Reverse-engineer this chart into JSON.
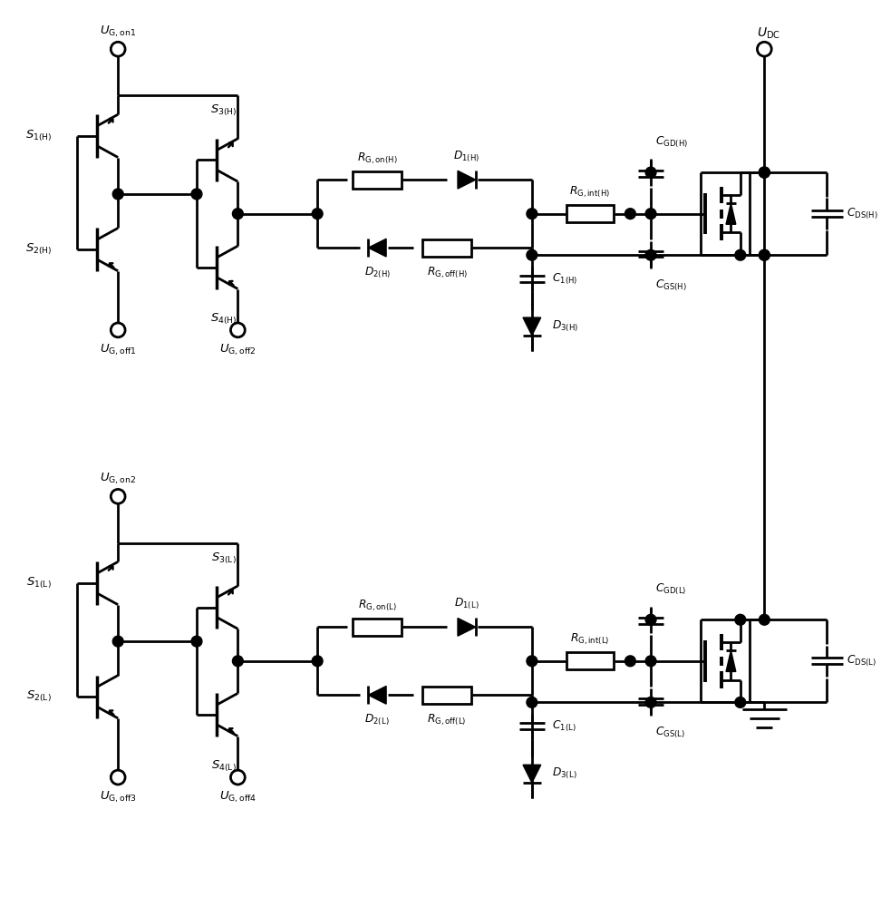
{
  "bg": "#ffffff",
  "lw": 2.0,
  "labels": {
    "UGon1": "$U_{\\rm G,on1}$",
    "UGon2": "$U_{\\rm G,on2}$",
    "UGoff1": "$U_{\\rm G,off1}$",
    "UGoff2": "$U_{\\rm G,off2}$",
    "UGoff3": "$U_{\\rm G,off3}$",
    "UGoff4": "$U_{\\rm G,off4}$",
    "UDC": "$U_{\\rm DC}$",
    "S1H": "$S_{\\rm 1(H)}$",
    "S2H": "$S_{\\rm 2(H)}$",
    "S3H": "$S_{\\rm 3(H)}$",
    "S4H": "$S_{\\rm 4(H)}$",
    "S1L": "$S_{\\rm 1(L)}$",
    "S2L": "$S_{\\rm 2(L)}$",
    "S3L": "$S_{\\rm 3(L)}$",
    "S4L": "$S_{\\rm 4(L)}$",
    "RGonH": "$R_{\\rm G,on(H)}$",
    "RGoffH": "$R_{\\rm G,off(H)}$",
    "RGintH": "$R_{\\rm G,int(H)}$",
    "D1H": "$D_{\\rm 1(H)}$",
    "D2H": "$D_{\\rm 2(H)}$",
    "D3H": "$D_{\\rm 3(H)}$",
    "C1H": "$C_{\\rm 1(H)}$",
    "CGD_H": "$C_{\\rm GD(H)}$",
    "CGS_H": "$C_{\\rm GS(H)}$",
    "CDS_H": "$C_{\\rm DS(H)}$",
    "RGonL": "$R_{\\rm G,on(L)}$",
    "RGoffL": "$R_{\\rm G,off(L)}$",
    "RGintL": "$R_{\\rm G,int(L)}$",
    "D1L": "$D_{\\rm 1(L)}$",
    "D2L": "$D_{\\rm 2(L)}$",
    "D3L": "$D_{\\rm 3(L)}$",
    "C1L": "$C_{\\rm 1(L)}$",
    "CGD_L": "$C_{\\rm GD(L)}$",
    "CGS_L": "$C_{\\rm GS(L)}$",
    "CDS_L": "$C_{\\rm DS(L)}$"
  }
}
